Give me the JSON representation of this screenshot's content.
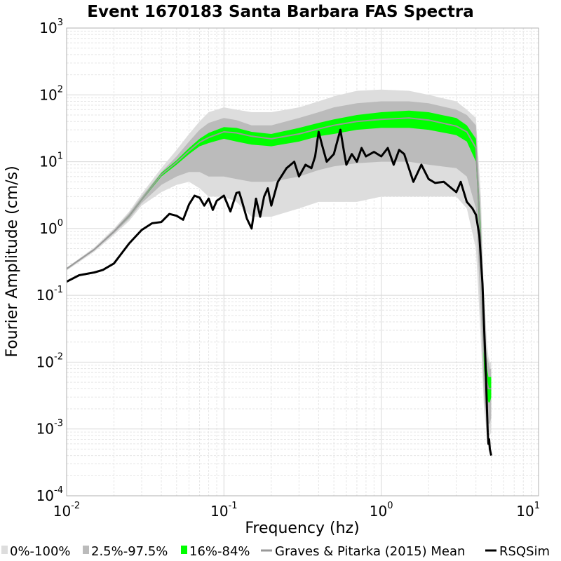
{
  "chart_data": {
    "type": "line",
    "title": "Event 1670183 Santa Barbara FAS Spectra",
    "xlabel": "Frequency (hz)",
    "ylabel": "Fourier Amplitude (cm/s)",
    "xscale": "log",
    "yscale": "log",
    "xlim": [
      0.01,
      10
    ],
    "ylim": [
      0.0001,
      1000
    ],
    "x_ticks": [
      {
        "base": "10",
        "exp": "-2",
        "value": 0.01
      },
      {
        "base": "10",
        "exp": "-1",
        "value": 0.1
      },
      {
        "base": "10",
        "exp": "0",
        "value": 1
      },
      {
        "base": "10",
        "exp": "1",
        "value": 10
      }
    ],
    "y_ticks": [
      {
        "base": "10",
        "exp": "-4",
        "value": 0.0001
      },
      {
        "base": "10",
        "exp": "-3",
        "value": 0.001
      },
      {
        "base": "10",
        "exp": "-2",
        "value": 0.01
      },
      {
        "base": "10",
        "exp": "-1",
        "value": 0.1
      },
      {
        "base": "10",
        "exp": "0",
        "value": 1
      },
      {
        "base": "10",
        "exp": "1",
        "value": 10
      },
      {
        "base": "10",
        "exp": "2",
        "value": 100
      },
      {
        "base": "10",
        "exp": "3",
        "value": 1000
      }
    ],
    "grid": true,
    "legend_position": "bottom",
    "x": [
      0.01,
      0.015,
      0.02,
      0.025,
      0.03,
      0.04,
      0.05,
      0.06,
      0.07,
      0.08,
      0.1,
      0.12,
      0.15,
      0.2,
      0.3,
      0.4,
      0.5,
      0.7,
      1.0,
      1.5,
      2.0,
      3.0,
      3.5,
      4.0,
      4.3,
      4.5,
      4.7,
      4.8,
      4.9,
      5.0
    ],
    "bands": [
      {
        "name": "0%-100%",
        "color": "#dddddd",
        "lower": [
          0.235,
          0.45,
          0.8,
          1.3,
          2.2,
          3.5,
          4.5,
          5.0,
          4.0,
          3.0,
          3.0,
          2.5,
          1.5,
          1.5,
          2.0,
          2.5,
          2.5,
          2.5,
          3.0,
          3.0,
          3.0,
          3.0,
          2.0,
          0.5,
          0.02,
          0.002,
          0.0008,
          0.0008,
          0.0008,
          0.0009
        ],
        "upper": [
          0.26,
          0.52,
          1.0,
          1.8,
          3.3,
          8.0,
          15.0,
          26.0,
          40.0,
          55.0,
          65.0,
          60.0,
          55.0,
          55.0,
          65.0,
          80.0,
          95.0,
          115.0,
          120.0,
          115.0,
          100.0,
          80.0,
          60.0,
          45.0,
          3.0,
          0.1,
          0.02,
          0.012,
          0.01,
          0.01
        ]
      },
      {
        "name": "2.5%-97.5%",
        "color": "#bbbbbb",
        "lower": [
          0.24,
          0.47,
          0.85,
          1.4,
          2.4,
          4.5,
          6.0,
          7.0,
          7.0,
          6.0,
          6.0,
          5.5,
          5.0,
          5.0,
          6.0,
          7.5,
          8.5,
          9.5,
          10.0,
          10.0,
          9.0,
          8.0,
          6.0,
          2.0,
          0.05,
          0.003,
          0.0012,
          0.0012,
          0.0012,
          0.0015
        ],
        "upper": [
          0.255,
          0.5,
          0.95,
          1.7,
          3.0,
          7.0,
          12.0,
          20.0,
          30.0,
          38.0,
          45.0,
          42.0,
          35.0,
          35.0,
          45.0,
          55.0,
          65.0,
          75.0,
          80.0,
          80.0,
          75.0,
          60.0,
          50.0,
          35.0,
          1.5,
          0.05,
          0.012,
          0.01,
          0.008,
          0.008
        ]
      },
      {
        "name": "16%-84%",
        "color": "#00ff00",
        "lower": [
          0.245,
          0.48,
          0.88,
          1.5,
          2.6,
          6.0,
          9.0,
          13.0,
          17.0,
          19.0,
          22.0,
          20.0,
          18.0,
          17.0,
          20.0,
          24.0,
          26.0,
          30.0,
          32.0,
          32.0,
          30.0,
          25.0,
          20.0,
          10.0,
          0.3,
          0.008,
          0.003,
          0.0025,
          0.0025,
          0.003
        ],
        "upper": [
          0.255,
          0.49,
          0.92,
          1.6,
          2.8,
          6.8,
          10.5,
          16.0,
          22.0,
          27.0,
          33.0,
          32.0,
          28.0,
          26.0,
          32.0,
          38.0,
          43.0,
          50.0,
          55.0,
          58.0,
          55.0,
          45.0,
          35.0,
          22.0,
          1.0,
          0.03,
          0.008,
          0.006,
          0.006,
          0.006
        ]
      }
    ],
    "series": [
      {
        "name": "Graves & Pitarka (2015) Mean",
        "color": "#999999",
        "x": [
          0.01,
          0.015,
          0.02,
          0.025,
          0.03,
          0.04,
          0.05,
          0.06,
          0.07,
          0.08,
          0.1,
          0.12,
          0.15,
          0.2,
          0.3,
          0.4,
          0.5,
          0.7,
          1.0,
          1.5,
          2.0,
          3.0,
          3.5,
          4.0,
          4.3,
          4.5,
          4.7,
          4.8,
          4.9,
          5.0
        ],
        "y": [
          0.25,
          0.485,
          0.9,
          1.55,
          2.7,
          6.4,
          9.8,
          14.5,
          19.5,
          23.0,
          28.0,
          27.0,
          24.0,
          22.0,
          26.0,
          31.0,
          35.0,
          40.0,
          43.0,
          45.0,
          42.0,
          34.0,
          28.0,
          16.0,
          0.55,
          0.016,
          0.005,
          0.004,
          0.004,
          0.004
        ]
      },
      {
        "name": "RSQSim",
        "color": "#000000",
        "x": [
          0.01,
          0.012,
          0.015,
          0.017,
          0.02,
          0.025,
          0.03,
          0.035,
          0.04,
          0.045,
          0.05,
          0.055,
          0.06,
          0.065,
          0.07,
          0.075,
          0.08,
          0.085,
          0.09,
          0.1,
          0.11,
          0.12,
          0.125,
          0.13,
          0.14,
          0.15,
          0.16,
          0.17,
          0.18,
          0.19,
          0.2,
          0.22,
          0.25,
          0.28,
          0.3,
          0.33,
          0.36,
          0.38,
          0.4,
          0.42,
          0.45,
          0.5,
          0.55,
          0.58,
          0.6,
          0.65,
          0.7,
          0.75,
          0.8,
          0.9,
          1.0,
          1.1,
          1.2,
          1.3,
          1.4,
          1.6,
          1.8,
          2.0,
          2.2,
          2.5,
          2.8,
          3.0,
          3.2,
          3.5,
          3.8,
          4.0,
          4.2,
          4.4,
          4.6,
          4.7,
          4.75,
          4.8,
          4.85,
          4.9,
          4.95,
          5.0
        ],
        "y": [
          0.16,
          0.2,
          0.22,
          0.24,
          0.3,
          0.6,
          0.95,
          1.2,
          1.25,
          1.65,
          1.55,
          1.35,
          2.3,
          3.1,
          2.9,
          2.2,
          2.8,
          1.9,
          2.6,
          3.1,
          1.8,
          3.4,
          3.5,
          2.6,
          1.4,
          1.0,
          2.8,
          1.5,
          3.0,
          4.0,
          2.2,
          5.0,
          8.0,
          10.0,
          6.0,
          9.0,
          8.0,
          12.0,
          28.0,
          18.0,
          10.0,
          13.0,
          30.0,
          14.0,
          9.0,
          13.0,
          10.0,
          16.0,
          12.0,
          14.0,
          12.0,
          16.0,
          9.0,
          15.0,
          13.0,
          5.0,
          9.0,
          5.5,
          4.8,
          5.0,
          4.0,
          3.5,
          5.0,
          2.5,
          2.0,
          1.6,
          0.8,
          0.15,
          0.01,
          0.002,
          0.0009,
          0.0006,
          0.0007,
          0.0005,
          0.00045,
          0.0004
        ]
      }
    ],
    "legend": [
      {
        "label": "0%-100%",
        "kind": "box",
        "color": "#dddddd"
      },
      {
        "label": "2.5%-97.5%",
        "kind": "box",
        "color": "#bbbbbb"
      },
      {
        "label": "16%-84%",
        "kind": "box",
        "color": "#00ff00"
      },
      {
        "label": "Graves & Pitarka (2015) Mean",
        "kind": "line",
        "color": "#999999"
      },
      {
        "label": "RSQSim",
        "kind": "line",
        "color": "#000000"
      }
    ]
  }
}
